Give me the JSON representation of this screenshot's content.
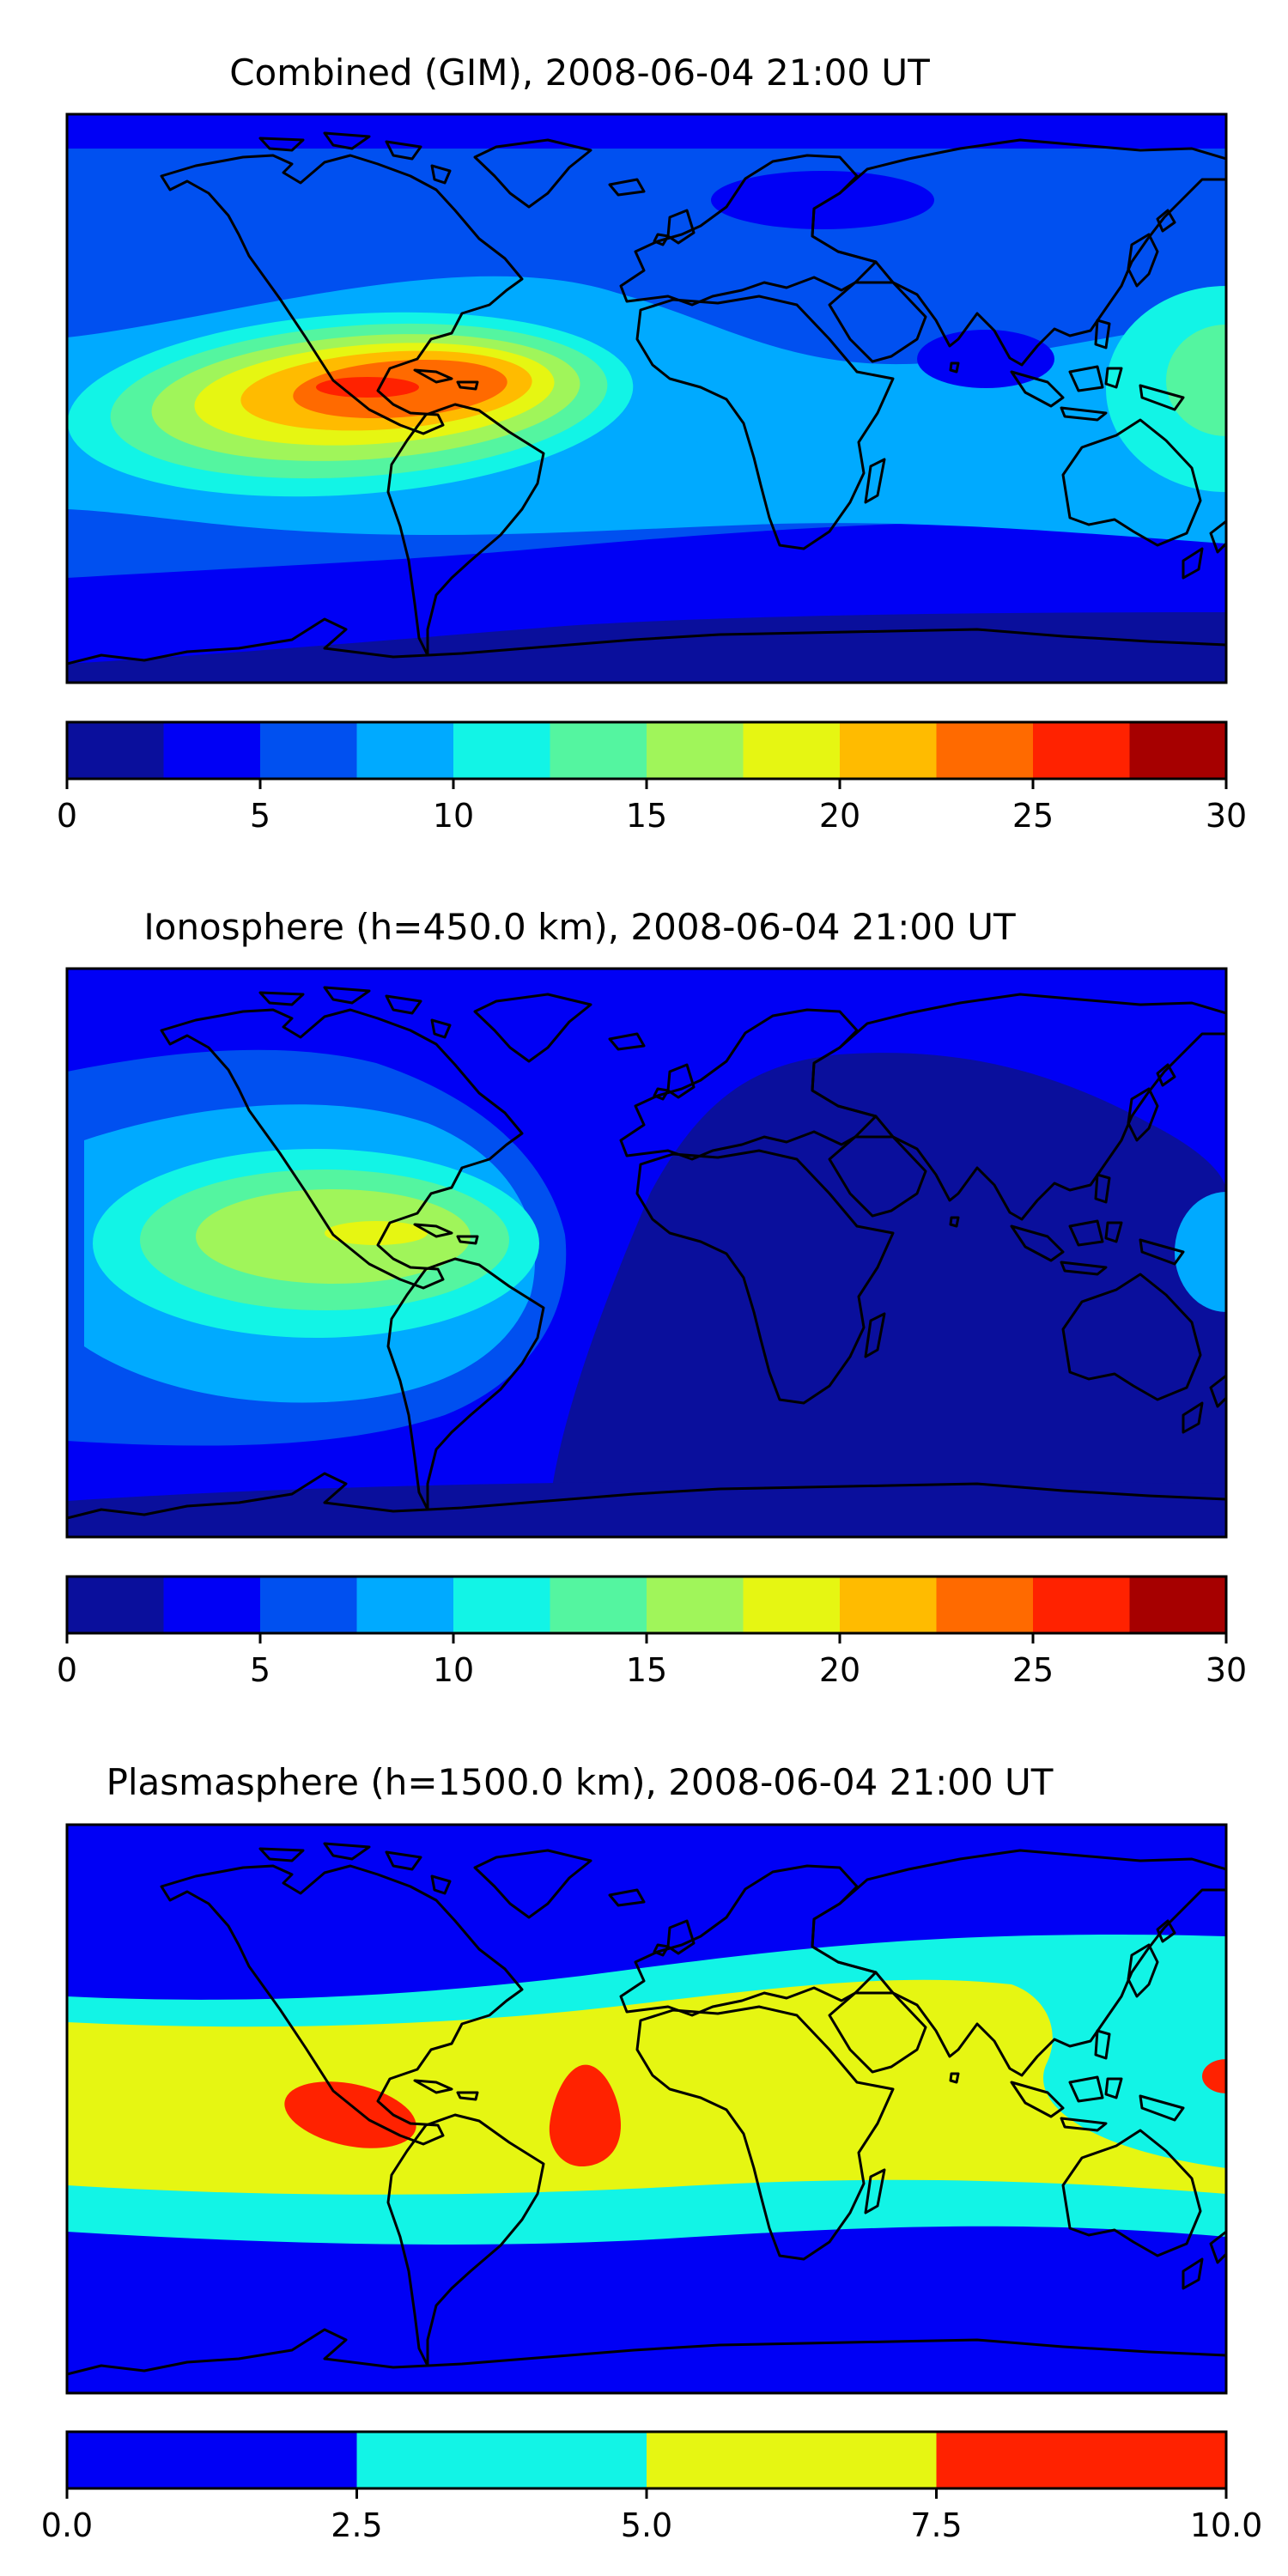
{
  "chart_data": [
    {
      "type": "heatmap",
      "title": "Combined (GIM), 2008-06-04 21:00 UT",
      "colorbar": {
        "ticks": [
          "0",
          "5",
          "10",
          "15",
          "20",
          "25",
          "30"
        ],
        "range": [
          0,
          30
        ],
        "levels": [
          0,
          2.5,
          5,
          7.5,
          10,
          12.5,
          15,
          17.5,
          20,
          22.5,
          25,
          27.5,
          30
        ],
        "colors": [
          "#0a0f9c",
          "#0000f5",
          "#0050f0",
          "#00aaff",
          "#12f4e6",
          "#54f5a0",
          "#a0f55a",
          "#e6f612",
          "#ffbb00",
          "#ff6a00",
          "#ff2200",
          "#a60000"
        ]
      },
      "regions": [
        {
          "name": "south-polar-band",
          "level": 0
        },
        {
          "name": "southern-ocean-band",
          "level": 1
        },
        {
          "name": "background",
          "level": 2
        },
        {
          "name": "north-cap",
          "level": 1
        },
        {
          "name": "tropical-band",
          "level": 3
        },
        {
          "name": "africa-high",
          "level": 3
        },
        {
          "name": "west-pacific-high",
          "level": 4
        },
        {
          "name": "west-pacific-core",
          "level": 5
        },
        {
          "name": "american-crest-1",
          "level": 4
        },
        {
          "name": "american-crest-2",
          "level": 5
        },
        {
          "name": "american-crest-3",
          "level": 6
        },
        {
          "name": "american-crest-4",
          "level": 7
        },
        {
          "name": "american-crest-5",
          "level": 8
        },
        {
          "name": "american-crest-6",
          "level": 9
        },
        {
          "name": "american-crest-7",
          "level": 10
        },
        {
          "name": "asia-low",
          "level": 1
        },
        {
          "name": "north-pacific-low",
          "level": 1
        }
      ]
    },
    {
      "type": "heatmap",
      "title": "Ionosphere  (h=450.0 km), 2008-06-04 21:00 UT",
      "colorbar": {
        "ticks": [
          "0",
          "5",
          "10",
          "15",
          "20",
          "25",
          "30"
        ],
        "range": [
          0,
          30
        ],
        "levels": [
          0,
          2.5,
          5,
          7.5,
          10,
          12.5,
          15,
          17.5,
          20,
          22.5,
          25,
          27.5,
          30
        ],
        "colors": [
          "#0a0f9c",
          "#0000f5",
          "#0050f0",
          "#00aaff",
          "#12f4e6",
          "#54f5a0",
          "#a0f55a",
          "#e6f612",
          "#ffbb00",
          "#ff6a00",
          "#ff2200",
          "#a60000"
        ]
      },
      "regions": [
        {
          "name": "background",
          "level": 1
        },
        {
          "name": "eastern-night-low",
          "level": 0
        },
        {
          "name": "south-polar-band",
          "level": 0
        },
        {
          "name": "american-day-1",
          "level": 2
        },
        {
          "name": "american-day-2",
          "level": 3
        },
        {
          "name": "american-day-3",
          "level": 4
        },
        {
          "name": "american-day-4",
          "level": 5
        },
        {
          "name": "american-day-5",
          "level": 6
        },
        {
          "name": "american-day-6",
          "level": 7
        },
        {
          "name": "west-pacific-high",
          "level": 3
        }
      ]
    },
    {
      "type": "heatmap",
      "title": "Plasmasphere (h=1500.0 km), 2008-06-04 21:00 UT",
      "colorbar": {
        "ticks": [
          "0.0",
          "2.5",
          "5.0",
          "7.5",
          "10.0"
        ],
        "range": [
          0,
          10
        ],
        "levels": [
          0,
          2.5,
          5,
          7.5,
          10
        ],
        "colors": [
          "#0000f5",
          "#12f4e6",
          "#e6f612",
          "#ff2200"
        ]
      },
      "regions": [
        {
          "name": "background",
          "level": 0
        },
        {
          "name": "equatorial-band",
          "level": 1
        },
        {
          "name": "central-band",
          "level": 2
        },
        {
          "name": "pacific-peak",
          "level": 3
        },
        {
          "name": "atlantic-peak",
          "level": 3
        },
        {
          "name": "west-pacific-peak",
          "level": 3
        }
      ]
    }
  ]
}
